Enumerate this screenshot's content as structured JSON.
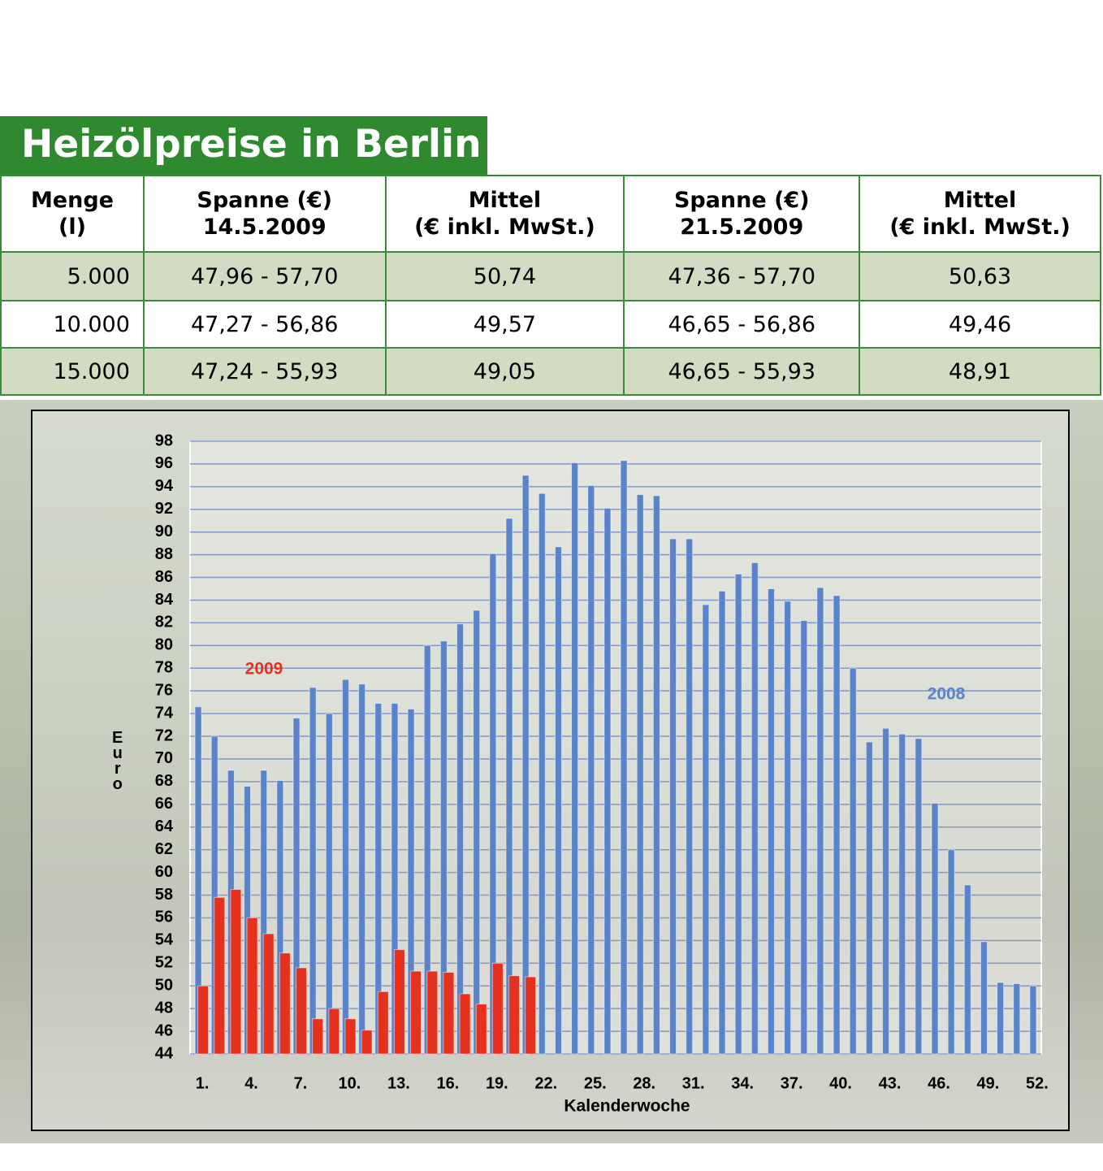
{
  "header": {
    "title": "Heizölpreise in Berlin"
  },
  "table": {
    "header": [
      [
        "Menge",
        "(l)"
      ],
      [
        "Spanne (€)",
        "14.5.2009"
      ],
      [
        "Mittel",
        "(€ inkl. MwSt.)"
      ],
      [
        "Spanne (€)",
        "21.5.2009"
      ],
      [
        "Mittel",
        "(€ inkl. MwSt.)"
      ]
    ],
    "rows": [
      [
        "5.000",
        "47,96 - 57,70",
        "50,74",
        "47,36 - 57,70",
        "50,63"
      ],
      [
        "10.000",
        "47,27 - 56,86",
        "49,57",
        "46,65 - 56,86",
        "49,46"
      ],
      [
        "15.000",
        "47,24 - 55,93",
        "49,05",
        "46,65 - 55,93",
        "48,91"
      ]
    ]
  },
  "chart_data": {
    "type": "bar",
    "x_label": "Kalenderwoche",
    "y_label": "Euro",
    "categories": [
      "1.",
      null,
      null,
      "4.",
      null,
      null,
      "7.",
      null,
      null,
      "10.",
      null,
      null,
      "13.",
      null,
      null,
      "16.",
      null,
      null,
      "19.",
      null,
      null,
      "22.",
      null,
      null,
      "25.",
      null,
      null,
      "28.",
      null,
      null,
      "31.",
      null,
      null,
      "34.",
      null,
      null,
      "37.",
      null,
      null,
      "40.",
      null,
      null,
      "43.",
      null,
      null,
      "46.",
      null,
      null,
      "49.",
      null,
      null,
      "52."
    ],
    "series": [
      {
        "name": "2008",
        "color": "#5b83c9",
        "values": [
          74.6,
          72.0,
          69.0,
          67.6,
          69.0,
          68.1,
          73.6,
          76.3,
          74.0,
          77.0,
          76.6,
          74.9,
          74.9,
          74.4,
          80.0,
          80.4,
          81.9,
          83.1,
          88.1,
          91.2,
          95.0,
          93.4,
          88.7,
          96.1,
          94.1,
          92.1,
          96.3,
          93.3,
          93.2,
          89.4,
          89.4,
          83.6,
          84.8,
          86.3,
          87.3,
          85.0,
          83.9,
          82.2,
          85.1,
          84.4,
          78.0,
          71.5,
          72.7,
          72.2,
          71.8,
          66.1,
          62.0,
          58.9,
          53.9,
          50.3,
          50.2,
          50.0
        ]
      },
      {
        "name": "2009",
        "color": "#e5321e",
        "values": [
          50.0,
          57.8,
          58.5,
          56.0,
          54.6,
          52.9,
          51.6,
          47.1,
          48.0,
          47.1,
          46.1,
          49.5,
          53.2,
          51.3,
          51.3,
          51.2,
          49.3,
          48.4,
          52.0,
          50.9,
          50.8,
          null,
          null,
          null,
          null,
          null,
          null,
          null,
          null,
          null,
          null,
          null,
          null,
          null,
          null,
          null,
          null,
          null,
          null,
          null,
          null,
          null,
          null,
          null,
          null,
          null,
          null,
          null,
          null,
          null,
          null,
          null
        ]
      }
    ],
    "ylim": [
      44,
      98
    ],
    "yticks": [
      44,
      46,
      48,
      50,
      52,
      54,
      56,
      58,
      60,
      62,
      64,
      66,
      68,
      70,
      72,
      74,
      76,
      78,
      80,
      82,
      84,
      86,
      88,
      90,
      92,
      94,
      96,
      98
    ],
    "grid": true
  }
}
